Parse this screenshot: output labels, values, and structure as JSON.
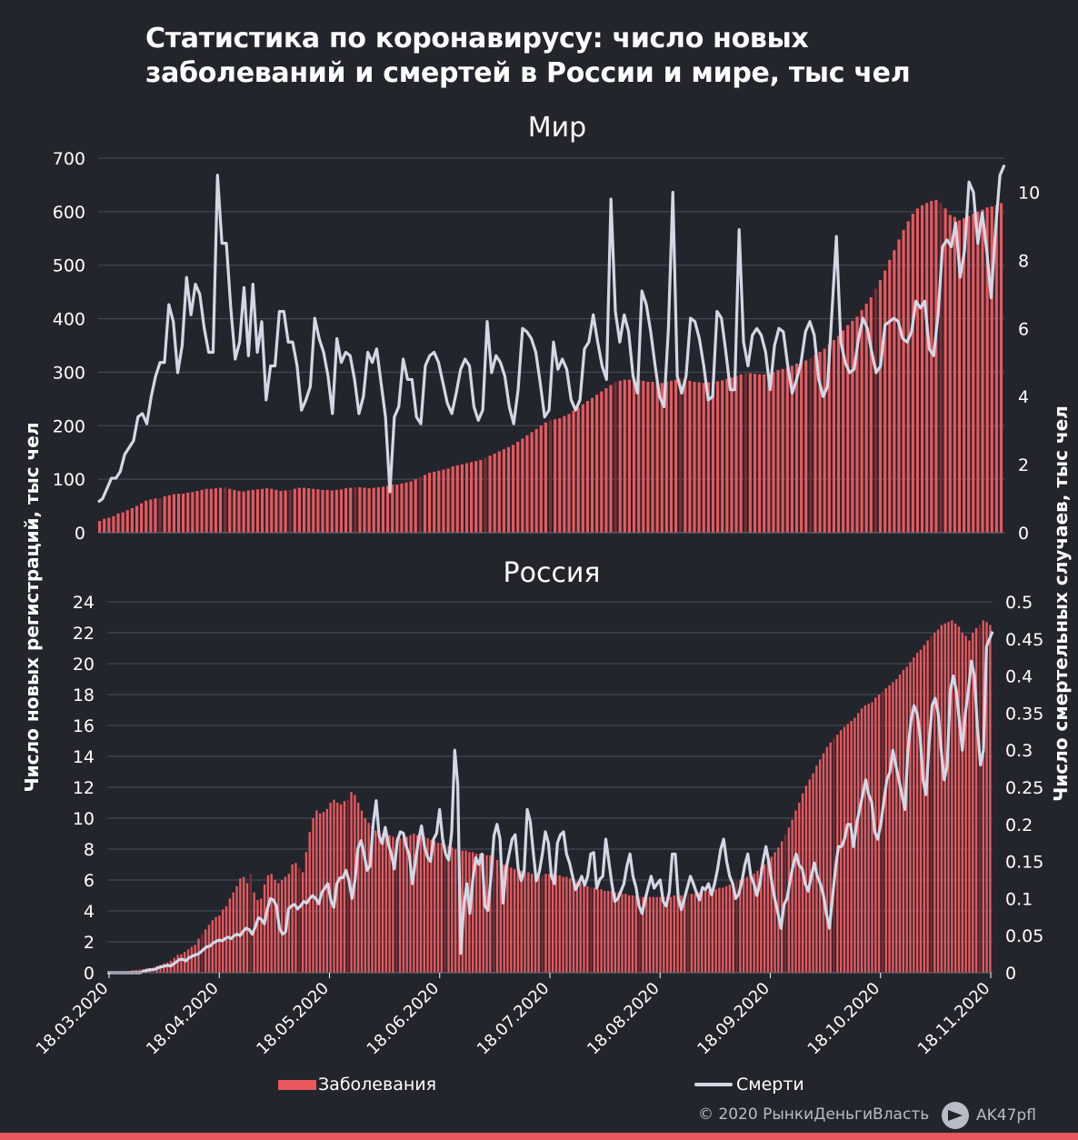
{
  "title": {
    "line1": "Статистика по коронавирусу: число новых",
    "line2": "заболеваний и смертей в России и мире, тыс чел"
  },
  "ylabel_left": "Число новых регистраций, тыс чел",
  "ylabel_right": "Число смертельных случаев, тыс чел",
  "legend": {
    "cases": "Заболевания",
    "deaths": "Смерти"
  },
  "footer": {
    "copyright": "© 2020 РынкиДеньгиВласть",
    "telegram": "AK47pfl"
  },
  "colors": {
    "background": "#23252d",
    "bars": "#e8585d",
    "bars_dark": "#7a2f36",
    "line": "#d3d8e6",
    "grid": "#4b4e58"
  },
  "icons": {
    "telegram": "telegram-icon"
  },
  "chart_data": [
    {
      "type": "bar",
      "title": "Мир",
      "x_start": "18.03.2020",
      "x_end": "20.11.2020",
      "ylim_left": [
        0,
        700
      ],
      "yticks_left": [
        "0",
        "100",
        "200",
        "300",
        "400",
        "500",
        "600",
        "700"
      ],
      "ylim_right": [
        0,
        11
      ],
      "yticks_right": [
        "0",
        "2",
        "4",
        "6",
        "8",
        "10"
      ],
      "series": [
        {
          "name": "Заболевания",
          "axis": "left",
          "type": "bar",
          "values": [
            22,
            26,
            28,
            31,
            36,
            38,
            42,
            46,
            50,
            55,
            60,
            62,
            64,
            64,
            68,
            70,
            72,
            73,
            73,
            75,
            76,
            78,
            80,
            82,
            82,
            83,
            84,
            85,
            82,
            80,
            78,
            77,
            79,
            80,
            81,
            82,
            83,
            82,
            80,
            78,
            79,
            80,
            82,
            84,
            84,
            83,
            82,
            81,
            80,
            80,
            79,
            80,
            81,
            83,
            84,
            85,
            85,
            84,
            83,
            84,
            85,
            86,
            88,
            90,
            90,
            92,
            94,
            96,
            100,
            104,
            108,
            112,
            114,
            116,
            118,
            120,
            124,
            126,
            128,
            130,
            132,
            134,
            136,
            140,
            144,
            148,
            152,
            156,
            160,
            164,
            170,
            176,
            182,
            188,
            194,
            200,
            206,
            210,
            212,
            214,
            218,
            222,
            228,
            234,
            240,
            246,
            252,
            258,
            264,
            270,
            276,
            282,
            284,
            286,
            286,
            288,
            286,
            284,
            282,
            282,
            281,
            280,
            282,
            284,
            286,
            288,
            286,
            284,
            282,
            281,
            280,
            281,
            282,
            283,
            285,
            288,
            290,
            293,
            296,
            298,
            298,
            297,
            296,
            296,
            298,
            300,
            304,
            306,
            308,
            312,
            316,
            318,
            322,
            326,
            332,
            338,
            344,
            352,
            360,
            368,
            378,
            388,
            396,
            404,
            416,
            428,
            440,
            456,
            472,
            490,
            510,
            528,
            548,
            566,
            582,
            596,
            606,
            612,
            616,
            620,
            622,
            616,
            606,
            594,
            590,
            584,
            588,
            592,
            596,
            600,
            604,
            608,
            610,
            612,
            616
          ]
        },
        {
          "name": "Смерти",
          "axis": "right",
          "type": "line",
          "values": [
            0.9,
            1.0,
            1.3,
            1.6,
            1.6,
            1.8,
            2.3,
            2.5,
            2.7,
            3.4,
            3.5,
            3.2,
            4.0,
            4.6,
            5.0,
            5.0,
            6.7,
            6.2,
            4.7,
            5.5,
            7.5,
            6.4,
            7.3,
            7.0,
            6.0,
            5.3,
            5.3,
            10.5,
            8.5,
            8.5,
            6.6,
            5.1,
            5.6,
            7.2,
            5.2,
            7.3,
            5.3,
            6.2,
            3.9,
            4.9,
            4.9,
            6.5,
            6.5,
            5.6,
            5.6,
            4.9,
            3.6,
            3.9,
            4.3,
            6.3,
            5.7,
            5.3,
            4.6,
            3.5,
            5.7,
            5.0,
            5.3,
            5.2,
            4.5,
            3.5,
            4.0,
            5.3,
            5.0,
            5.4,
            4.4,
            3.4,
            1.2,
            3.4,
            3.7,
            5.1,
            4.5,
            4.5,
            3.4,
            3.2,
            4.9,
            5.2,
            5.3,
            5.0,
            4.4,
            3.8,
            3.5,
            4.1,
            4.8,
            5.1,
            4.9,
            3.7,
            3.3,
            3.6,
            6.2,
            4.7,
            5.2,
            5.0,
            4.6,
            3.7,
            3.2,
            4.2,
            6.0,
            5.9,
            5.7,
            5.3,
            4.4,
            3.4,
            3.6,
            5.6,
            4.8,
            5.1,
            4.8,
            3.9,
            3.6,
            3.9,
            5.4,
            5.6,
            6.4,
            5.6,
            4.9,
            4.5,
            9.8,
            6.5,
            5.6,
            6.4,
            5.9,
            4.6,
            4.1,
            7.1,
            6.7,
            5.9,
            4.9,
            4.0,
            3.7,
            6.0,
            10.0,
            4.6,
            4.1,
            4.6,
            6.3,
            6.2,
            5.7,
            4.9,
            3.9,
            4.0,
            6.5,
            6.3,
            5.3,
            4.2,
            4.2,
            8.9,
            5.6,
            4.9,
            5.8,
            6.0,
            5.8,
            5.3,
            4.2,
            5.5,
            6.0,
            5.9,
            4.9,
            4.1,
            4.5,
            5.0,
            5.9,
            6.2,
            5.8,
            4.5,
            4.0,
            4.3,
            6.5,
            8.7,
            5.6,
            5.0,
            4.7,
            4.8,
            5.7,
            6.3,
            6.0,
            5.3,
            4.7,
            4.9,
            6.1,
            6.2,
            6.3,
            6.2,
            5.7,
            5.6,
            5.9,
            6.8,
            6.6,
            6.8,
            5.4,
            5.2,
            6.4,
            8.4,
            8.6,
            8.4,
            9.1,
            7.5,
            8.3,
            10.3,
            10.0,
            8.5,
            9.4,
            8.3,
            6.9,
            8.9,
            10.5,
            10.8
          ],
          "line_days_span": 247
        }
      ]
    },
    {
      "type": "bar",
      "title": "Россия",
      "x_start": "18.03.2020",
      "x_end": "20.11.2020",
      "xticks": [
        "18.03.2020",
        "18.04.2020",
        "18.05.2020",
        "18.06.2020",
        "18.07.2020",
        "18.08.2020",
        "18.09.2020",
        "18.10.2020",
        "18.11.2020"
      ],
      "ylim_left": [
        0,
        24
      ],
      "yticks_left": [
        "0",
        "2",
        "4",
        "6",
        "8",
        "10",
        "12",
        "14",
        "16",
        "18",
        "20",
        "22",
        "24"
      ],
      "ylim_right": [
        0,
        0.5
      ],
      "yticks_right": [
        "0",
        "0.05",
        "0.1",
        "0.15",
        "0.2",
        "0.25",
        "0.3",
        "0.35",
        "0.4",
        "0.45",
        "0.5"
      ],
      "series": [
        {
          "name": "Заболевания",
          "axis": "left",
          "type": "bar",
          "values": [
            0.03,
            0.05,
            0.05,
            0.06,
            0.07,
            0.1,
            0.1,
            0.16,
            0.18,
            0.2,
            0.23,
            0.27,
            0.3,
            0.4,
            0.44,
            0.5,
            0.6,
            0.66,
            0.77,
            0.96,
            1.15,
            1.2,
            1.35,
            1.5,
            1.67,
            1.8,
            2.2,
            2.5,
            2.8,
            3.1,
            3.4,
            3.6,
            3.7,
            4.1,
            4.3,
            4.8,
            5.2,
            5.6,
            6.1,
            6.2,
            5.8,
            6.4,
            5.2,
            4.7,
            4.8,
            5.7,
            6.3,
            6.4,
            6.0,
            5.8,
            6.0,
            6.2,
            6.4,
            7.0,
            7.1,
            6.8,
            6.5,
            7.8,
            9.1,
            10.0,
            10.5,
            10.3,
            10.4,
            10.6,
            11.0,
            11.2,
            11.0,
            10.9,
            11.1,
            11.2,
            11.7,
            11.5,
            11.0,
            10.5,
            10.0,
            9.7,
            9.5,
            9.2,
            9.1,
            9.0,
            8.9,
            8.9,
            8.8,
            8.8,
            8.7,
            8.7,
            8.8,
            8.9,
            9.0,
            8.9,
            8.8,
            8.8,
            8.7,
            8.6,
            8.5,
            8.4,
            8.4,
            8.3,
            8.2,
            8.1,
            8.0,
            8.0,
            7.9,
            7.9,
            7.8,
            7.8,
            7.7,
            7.7,
            7.7,
            7.6,
            7.6,
            7.5,
            7.3,
            7.1,
            7.0,
            6.9,
            6.8,
            6.7,
            6.6,
            6.6,
            6.5,
            6.5,
            6.4,
            6.4,
            6.4,
            6.3,
            6.4,
            6.4,
            6.4,
            6.3,
            6.3,
            6.2,
            6.2,
            6.1,
            6.0,
            5.9,
            5.8,
            5.7,
            5.6,
            5.5,
            5.5,
            5.4,
            5.4,
            5.3,
            5.3,
            5.3,
            5.2,
            5.2,
            5.1,
            5.1,
            5.0,
            5.0,
            5.0,
            4.9,
            4.9,
            4.9,
            4.9,
            4.9,
            4.9,
            4.9,
            4.9,
            4.9,
            4.9,
            5.0,
            5.0,
            5.0,
            5.0,
            5.1,
            5.1,
            5.1,
            5.2,
            5.2,
            5.3,
            5.3,
            5.4,
            5.4,
            5.5,
            5.5,
            5.6,
            5.7,
            5.8,
            5.9,
            6.0,
            6.1,
            6.2,
            6.3,
            6.4,
            6.6,
            6.8,
            7.0,
            7.2,
            7.5,
            7.8,
            8.1,
            8.5,
            8.9,
            9.4,
            9.9,
            10.5,
            11.0,
            11.6,
            12.1,
            12.5,
            12.9,
            13.4,
            13.8,
            14.2,
            14.6,
            14.9,
            15.2,
            15.4,
            15.7,
            15.9,
            16.1,
            16.3,
            16.5,
            16.8,
            17.1,
            17.3,
            17.4,
            17.5,
            17.8,
            18.0,
            18.2,
            18.4,
            18.6,
            18.8,
            19.0,
            19.3,
            19.6,
            19.8,
            20.1,
            20.4,
            20.7,
            20.9,
            21.2,
            21.5,
            21.8,
            22.0,
            22.2,
            22.5,
            22.6,
            22.7,
            22.8,
            22.6,
            22.4,
            22.0,
            21.8,
            21.5,
            22.0,
            22.3,
            22.5,
            22.8,
            22.7,
            22.5
          ],
          "note_span_days": 247
        },
        {
          "name": "Смерти",
          "axis": "right",
          "type": "line",
          "values": [
            0,
            0,
            0,
            0,
            0,
            0,
            0,
            0,
            0,
            0,
            0,
            0,
            0.002,
            0.003,
            0.004,
            0.004,
            0.005,
            0.007,
            0.008,
            0.009,
            0.01,
            0.009,
            0.012,
            0.015,
            0.018,
            0.018,
            0.016,
            0.02,
            0.022,
            0.024,
            0.025,
            0.028,
            0.032,
            0.035,
            0.036,
            0.04,
            0.042,
            0.044,
            0.043,
            0.046,
            0.048,
            0.046,
            0.05,
            0.052,
            0.05,
            0.056,
            0.06,
            0.058,
            0.052,
            0.062,
            0.074,
            0.072,
            0.066,
            0.086,
            0.1,
            0.098,
            0.09,
            0.06,
            0.052,
            0.055,
            0.086,
            0.09,
            0.092,
            0.086,
            0.09,
            0.096,
            0.094,
            0.1,
            0.104,
            0.1,
            0.093,
            0.108,
            0.114,
            0.12,
            0.098,
            0.088,
            0.12,
            0.128,
            0.128,
            0.138,
            0.124,
            0.1,
            0.125,
            0.168,
            0.178,
            0.16,
            0.138,
            0.144,
            0.2,
            0.232,
            0.184,
            0.174,
            0.196,
            0.174,
            0.16,
            0.14,
            0.178,
            0.19,
            0.188,
            0.17,
            0.158,
            0.12,
            0.15,
            0.178,
            0.198,
            0.17,
            0.156,
            0.15,
            0.18,
            0.188,
            0.22,
            0.18,
            0.16,
            0.152,
            0.19,
            0.3,
            0.254,
            0.026,
            0.09,
            0.12,
            0.08,
            0.126,
            0.155,
            0.146,
            0.16,
            0.09,
            0.084,
            0.13,
            0.185,
            0.2,
            0.18,
            0.094,
            0.14,
            0.16,
            0.18,
            0.186,
            0.14,
            0.124,
            0.138,
            0.22,
            0.204,
            0.162,
            0.124,
            0.136,
            0.16,
            0.19,
            0.175,
            0.13,
            0.12,
            0.175,
            0.186,
            0.19,
            0.16,
            0.148,
            0.13,
            0.112,
            0.12,
            0.13,
            0.118,
            0.13,
            0.16,
            0.162,
            0.114,
            0.126,
            0.13,
            0.18,
            0.15,
            0.12,
            0.096,
            0.1,
            0.11,
            0.12,
            0.144,
            0.16,
            0.13,
            0.115,
            0.09,
            0.08,
            0.098,
            0.115,
            0.13,
            0.114,
            0.12,
            0.125,
            0.096,
            0.09,
            0.108,
            0.16,
            0.16,
            0.1,
            0.085,
            0.1,
            0.115,
            0.13,
            0.12,
            0.108,
            0.098,
            0.115,
            0.112,
            0.12,
            0.105,
            0.12,
            0.14,
            0.166,
            0.18,
            0.15,
            0.13,
            0.12,
            0.1,
            0.106,
            0.122,
            0.145,
            0.16,
            0.13,
            0.12,
            0.104,
            0.12,
            0.15,
            0.17,
            0.148,
            0.12,
            0.098,
            0.08,
            0.06,
            0.092,
            0.1,
            0.125,
            0.145,
            0.16,
            0.145,
            0.14,
            0.12,
            0.11,
            0.13,
            0.148,
            0.13,
            0.12,
            0.105,
            0.08,
            0.06,
            0.1,
            0.14,
            0.17,
            0.17,
            0.18,
            0.2,
            0.2,
            0.17,
            0.2,
            0.22,
            0.24,
            0.26,
            0.24,
            0.23,
            0.19,
            0.18,
            0.2,
            0.23,
            0.26,
            0.27,
            0.3,
            0.28,
            0.26,
            0.24,
            0.22,
            0.3,
            0.34,
            0.36,
            0.35,
            0.32,
            0.26,
            0.24,
            0.31,
            0.36,
            0.37,
            0.35,
            0.3,
            0.26,
            0.28,
            0.38,
            0.4,
            0.38,
            0.34,
            0.3,
            0.35,
            0.38,
            0.42,
            0.4,
            0.33,
            0.28,
            0.3,
            0.44,
            0.45,
            0.46
          ]
        }
      ]
    }
  ]
}
